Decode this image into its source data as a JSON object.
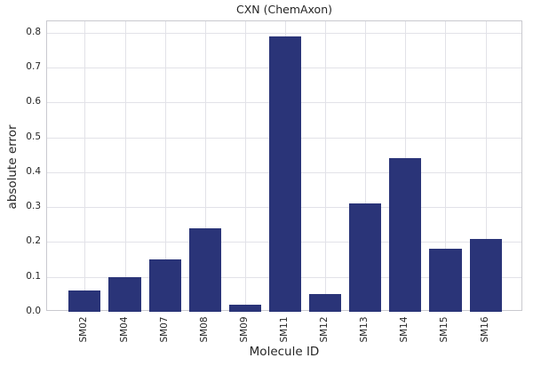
{
  "chart_data": {
    "type": "bar",
    "title": "CXN (ChemAxon)",
    "xlabel": "Molecule ID",
    "ylabel": "absolute error",
    "categories": [
      "SM02",
      "SM04",
      "SM07",
      "SM08",
      "SM09",
      "SM11",
      "SM12",
      "SM13",
      "SM14",
      "SM15",
      "SM16"
    ],
    "values": [
      0.06,
      0.1,
      0.15,
      0.24,
      0.02,
      0.79,
      0.05,
      0.31,
      0.44,
      0.18,
      0.21
    ],
    "ytick_labels": [
      "0.0",
      "0.1",
      "0.2",
      "0.3",
      "0.4",
      "0.5",
      "0.6",
      "0.7",
      "0.8"
    ],
    "yticks": [
      0.0,
      0.1,
      0.2,
      0.3,
      0.4,
      0.5,
      0.6,
      0.7,
      0.8
    ],
    "ylim": [
      0,
      0.833
    ],
    "xlim": [
      -0.94,
      10.94
    ],
    "bar_width": 0.8,
    "grid": true,
    "legend": "none",
    "colors": {
      "bar": "#2a3478",
      "grid": "#e2e2e8",
      "spine": "#c9c9cf",
      "text": "#262626",
      "background": "#ffffff"
    }
  }
}
